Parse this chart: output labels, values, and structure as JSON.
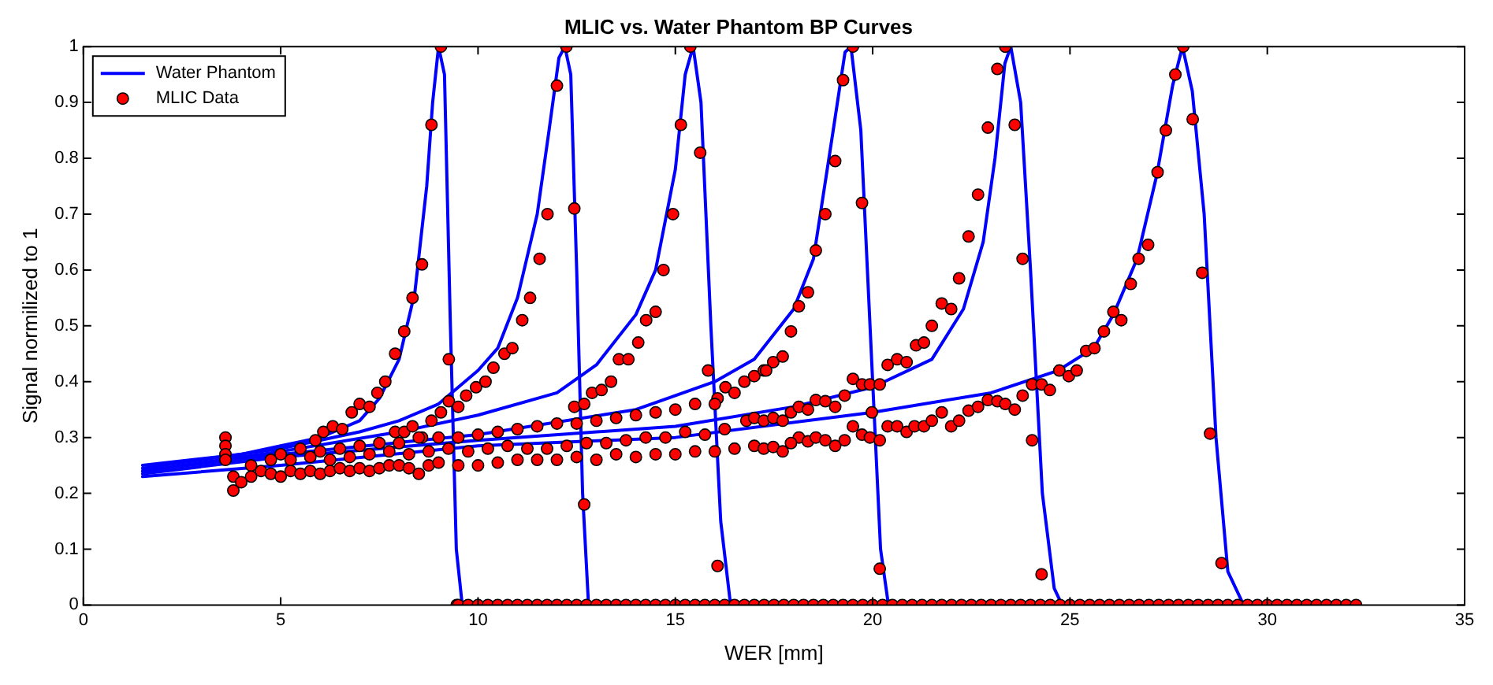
{
  "chart_data": {
    "type": "line",
    "title": "MLIC vs. Water Phantom BP Curves",
    "xlabel": "WER [mm]",
    "ylabel": "Signal normilized to 1",
    "xlim": [
      0,
      35
    ],
    "xticks": [
      0,
      5,
      10,
      15,
      20,
      25,
      30,
      35
    ],
    "ylim": [
      0,
      1
    ],
    "yticks": [
      0,
      0.1,
      0.2,
      0.3,
      0.4,
      0.5,
      0.6,
      0.7,
      0.8,
      0.9,
      1
    ],
    "legend": "top left",
    "series": [
      {
        "name": "Water Phantom",
        "color": "#0000ff",
        "marker": "none",
        "line_style": "solid",
        "x": [
          1.5,
          4,
          5,
          6,
          7,
          7.5,
          8,
          8.4,
          8.7,
          8.85,
          9.0,
          9.15,
          9.3,
          9.45,
          9.6
        ],
        "values": [
          0.25,
          0.27,
          0.285,
          0.3,
          0.33,
          0.37,
          0.44,
          0.56,
          0.75,
          0.9,
          1.0,
          0.95,
          0.5,
          0.1,
          0
        ]
      },
      {
        "color": "#0000ff",
        "marker": "none",
        "line_style": "solid",
        "x": [
          1.5,
          5,
          7,
          8,
          9,
          10,
          10.5,
          11,
          11.5,
          11.8,
          12.05,
          12.2,
          12.35,
          12.5,
          12.65,
          12.8
        ],
        "values": [
          0.245,
          0.28,
          0.31,
          0.33,
          0.36,
          0.42,
          0.46,
          0.55,
          0.7,
          0.85,
          0.98,
          1.0,
          0.95,
          0.6,
          0.2,
          0
        ]
      },
      {
        "color": "#0000ff",
        "marker": "none",
        "line_style": "solid",
        "x": [
          1.5,
          5,
          8,
          10,
          12,
          13,
          14,
          14.5,
          15,
          15.25,
          15.45,
          15.65,
          15.9,
          16.15,
          16.4
        ],
        "values": [
          0.24,
          0.275,
          0.31,
          0.34,
          0.38,
          0.43,
          0.52,
          0.6,
          0.78,
          0.95,
          1.0,
          0.9,
          0.5,
          0.15,
          0
        ]
      },
      {
        "color": "#0000ff",
        "marker": "none",
        "line_style": "solid",
        "x": [
          1.5,
          5,
          10,
          14,
          16,
          17,
          18,
          18.5,
          19,
          19.3,
          19.45,
          19.7,
          20.0,
          20.2,
          20.4
        ],
        "values": [
          0.24,
          0.27,
          0.305,
          0.35,
          0.4,
          0.44,
          0.53,
          0.62,
          0.85,
          0.99,
          1.0,
          0.85,
          0.4,
          0.1,
          0
        ]
      },
      {
        "color": "#0000ff",
        "marker": "none",
        "line_style": "solid",
        "x": [
          1.5,
          5,
          10,
          15,
          18,
          20,
          21.5,
          22.3,
          22.8,
          23.1,
          23.35,
          23.5,
          23.75,
          24.0,
          24.3,
          24.6,
          24.8
        ],
        "values": [
          0.235,
          0.265,
          0.295,
          0.32,
          0.355,
          0.39,
          0.44,
          0.53,
          0.65,
          0.8,
          0.97,
          1.0,
          0.9,
          0.6,
          0.2,
          0.03,
          0
        ]
      },
      {
        "color": "#0000ff",
        "marker": "none",
        "line_style": "solid",
        "x": [
          1.5,
          5,
          10,
          15,
          20,
          23,
          24.7,
          25.6,
          26.1,
          26.7,
          27.2,
          27.6,
          27.85,
          28.1,
          28.4,
          28.7,
          29.0,
          29.4
        ],
        "values": [
          0.23,
          0.25,
          0.285,
          0.3,
          0.345,
          0.38,
          0.42,
          0.46,
          0.52,
          0.62,
          0.77,
          0.93,
          1.0,
          0.92,
          0.7,
          0.3,
          0.06,
          0
        ]
      },
      {
        "name": "MLIC Data",
        "type": "scatter",
        "color": "#ff0000",
        "marker": "circle",
        "x": [
          5.88,
          6.08,
          6.32,
          6.56,
          6.8,
          7.0,
          7.25,
          7.45,
          7.65,
          7.9,
          8.13,
          8.34,
          8.58,
          8.82,
          9.06,
          9.26,
          9.46,
          7.9,
          8.13,
          8.34,
          8.58,
          8.82,
          9.06,
          9.26,
          9.5,
          9.7,
          9.95,
          10.19,
          10.39,
          10.67,
          10.87,
          11.12,
          11.32,
          11.56,
          11.76,
          12.0,
          12.24,
          12.44,
          12.69,
          12.44,
          12.69,
          12.89,
          13.13,
          13.37,
          13.57,
          13.81,
          14.06,
          14.26,
          14.5,
          14.7,
          14.94,
          15.14,
          15.38,
          15.63,
          15.83,
          16.07,
          16.07,
          16.27,
          16.5,
          16.75,
          17.0,
          17.24,
          17.48,
          17.3,
          17.72,
          17.93,
          18.13,
          18.36,
          18.56,
          18.8,
          19.05,
          19.25,
          19.5,
          19.73,
          19.98,
          20.18,
          17.93,
          18.13,
          18.36,
          18.56,
          18.8,
          19.05,
          19.29,
          19.5,
          19.73,
          19.93,
          20.18,
          20.38,
          20.62,
          20.86,
          21.1,
          21.3,
          21.5,
          21.75,
          21.99,
          22.19,
          22.43,
          22.67,
          22.92,
          23.16,
          23.36,
          23.6,
          23.8,
          24.04,
          24.28,
          16.8,
          17.0,
          17.24,
          17.48,
          17.72,
          18.13,
          18.36,
          18.56,
          18.8,
          19.05,
          19.29,
          19.5,
          19.73,
          19.93,
          20.18,
          20.38,
          20.62,
          20.86,
          21.06,
          21.3,
          21.5,
          21.75,
          21.99,
          22.19,
          22.43,
          22.67,
          22.92,
          23.16,
          23.36,
          23.6,
          23.8,
          24.04,
          24.28,
          24.49,
          24.73,
          24.97,
          25.17,
          25.41,
          25.62,
          25.86,
          26.1,
          26.3,
          26.54,
          26.74,
          26.98,
          27.22,
          27.43,
          27.67,
          27.87,
          28.11,
          28.35,
          28.55,
          28.84,
          17.0,
          17.24,
          17.48,
          17.72,
          17.93,
          3.6,
          3.6,
          3.6,
          3.6,
          3.8,
          3.8,
          4.0,
          4.25,
          4.5,
          4.75,
          5.0,
          5.25,
          5.5,
          5.75,
          6.0,
          6.25,
          6.5,
          6.75,
          7.0,
          7.25,
          7.5,
          7.75,
          8.0,
          8.25,
          8.5,
          8.75,
          9.0,
          9.5,
          10.0,
          10.5,
          11.0,
          11.5,
          12.0,
          12.5,
          13.0,
          13.5,
          14.0,
          14.5,
          15.0,
          15.5,
          16.0,
          16.5,
          4.25,
          4.75,
          5.25,
          5.75,
          6.25,
          6.75,
          7.25,
          7.75,
          8.25,
          8.75,
          9.25,
          9.75,
          10.25,
          10.75,
          11.25,
          11.75,
          12.25,
          12.75,
          13.25,
          13.75,
          14.25,
          14.75,
          15.25,
          15.75,
          16.25,
          5.0,
          5.5,
          6.0,
          6.5,
          7.0,
          7.5,
          8.0,
          8.5,
          9.0,
          9.5,
          10.0,
          10.5,
          11.0,
          11.5,
          12.0,
          12.5,
          13.0,
          13.5,
          14.0,
          14.5,
          15.0,
          15.5,
          16.0,
          9.5,
          9.75,
          10.0,
          10.25,
          10.5,
          10.75,
          11.0,
          11.25,
          11.5,
          11.75,
          12.0,
          12.25,
          12.5,
          12.75,
          13.0,
          13.25,
          13.5,
          13.75,
          14.0,
          14.25,
          14.5,
          14.75,
          15.0,
          15.25,
          15.5,
          15.75,
          16.0,
          16.25,
          16.5,
          16.75,
          17.0,
          17.25,
          17.5,
          17.75,
          18.0,
          18.25,
          18.5,
          18.75,
          19.0,
          19.25,
          19.5,
          19.75,
          20.0,
          20.25,
          20.5,
          20.75,
          21.0,
          21.25,
          21.5,
          21.75,
          22.0,
          22.25,
          22.5,
          22.75,
          23.0,
          23.25,
          23.5,
          23.75,
          24.0,
          24.25,
          24.5,
          24.75,
          25.0,
          25.25,
          25.5,
          25.75,
          26.0,
          26.25,
          26.5,
          26.75,
          27.0,
          27.25,
          27.5,
          27.75,
          28.0,
          28.25,
          28.5,
          28.75,
          29.0,
          29.25,
          29.5,
          29.75,
          30.0,
          30.25,
          30.5,
          30.75,
          31.0,
          31.25,
          31.5,
          31.75,
          32.0,
          32.25
        ],
        "values": [
          0.295,
          0.31,
          0.32,
          0.315,
          0.345,
          0.36,
          0.355,
          0.38,
          0.4,
          0.45,
          0.49,
          0.55,
          0.61,
          0.86,
          1.0,
          0.44,
          0,
          0.31,
          0.31,
          0.32,
          0.3,
          0.33,
          0.345,
          0.365,
          0.355,
          0.375,
          0.39,
          0.4,
          0.425,
          0.45,
          0.46,
          0.51,
          0.55,
          0.62,
          0.7,
          0.93,
          1.0,
          0.71,
          0.18,
          0.355,
          0.36,
          0.38,
          0.385,
          0.4,
          0.44,
          0.44,
          0.47,
          0.51,
          0.525,
          0.6,
          0.7,
          0.86,
          1.0,
          0.81,
          0.42,
          0.07,
          0.37,
          0.39,
          0.38,
          0.4,
          0.41,
          0.42,
          0.435,
          0.42,
          0.445,
          0.49,
          0.535,
          0.56,
          0.635,
          0.7,
          0.795,
          0.94,
          1.0,
          0.72,
          0.345,
          0.065,
          0.345,
          0.355,
          0.35,
          0.367,
          0.365,
          0.355,
          0.375,
          0.405,
          0.395,
          0.395,
          0.395,
          0.43,
          0.44,
          0.435,
          0.465,
          0.47,
          0.5,
          0.54,
          0.53,
          0.585,
          0.66,
          0.735,
          0.855,
          0.96,
          1.0,
          0.86,
          0.62,
          0.295,
          0.055,
          0.33,
          0.335,
          0.33,
          0.335,
          0.33,
          0.3,
          0.293,
          0.3,
          0.295,
          0.285,
          0.295,
          0.32,
          0.305,
          0.3,
          0.295,
          0.32,
          0.32,
          0.31,
          0.32,
          0.32,
          0.33,
          0.345,
          0.32,
          0.33,
          0.348,
          0.355,
          0.367,
          0.365,
          0.36,
          0.35,
          0.375,
          0.395,
          0.395,
          0.385,
          0.42,
          0.41,
          0.42,
          0.455,
          0.46,
          0.49,
          0.525,
          0.51,
          0.575,
          0.62,
          0.645,
          0.775,
          0.85,
          0.95,
          1.0,
          0.87,
          0.595,
          0.307,
          0.075,
          0.285,
          0.28,
          0.283,
          0.275,
          0.29,
          0.3,
          0.285,
          0.27,
          0.26,
          0.23,
          0.205,
          0.22,
          0.23,
          0.24,
          0.235,
          0.23,
          0.24,
          0.235,
          0.24,
          0.235,
          0.24,
          0.245,
          0.24,
          0.245,
          0.24,
          0.245,
          0.25,
          0.25,
          0.245,
          0.235,
          0.25,
          0.255,
          0.25,
          0.25,
          0.255,
          0.26,
          0.26,
          0.26,
          0.265,
          0.26,
          0.27,
          0.265,
          0.27,
          0.27,
          0.275,
          0.275,
          0.28,
          0.25,
          0.26,
          0.26,
          0.265,
          0.26,
          0.265,
          0.27,
          0.275,
          0.27,
          0.275,
          0.28,
          0.275,
          0.28,
          0.285,
          0.28,
          0.28,
          0.285,
          0.29,
          0.29,
          0.295,
          0.3,
          0.3,
          0.31,
          0.305,
          0.315,
          0.27,
          0.28,
          0.275,
          0.28,
          0.285,
          0.29,
          0.29,
          0.3,
          0.3,
          0.3,
          0.305,
          0.31,
          0.315,
          0.32,
          0.325,
          0.325,
          0.33,
          0.335,
          0.34,
          0.345,
          0.35,
          0.36,
          0.36,
          0,
          0,
          0,
          0,
          0,
          0,
          0,
          0,
          0,
          0,
          0,
          0,
          0,
          0,
          0,
          0,
          0,
          0,
          0,
          0,
          0,
          0,
          0,
          0,
          0,
          0,
          0,
          0,
          0,
          0,
          0,
          0,
          0,
          0,
          0,
          0,
          0,
          0,
          0,
          0,
          0,
          0,
          0,
          0,
          0,
          0,
          0,
          0,
          0,
          0,
          0,
          0,
          0,
          0,
          0,
          0,
          0,
          0,
          0,
          0,
          0,
          0,
          0,
          0,
          0,
          0,
          0,
          0,
          0,
          0,
          0,
          0,
          0,
          0,
          0,
          0,
          0,
          0,
          0,
          0,
          0,
          0,
          0,
          0,
          0,
          0,
          0,
          0,
          0,
          0,
          0,
          0
        ]
      }
    ]
  }
}
